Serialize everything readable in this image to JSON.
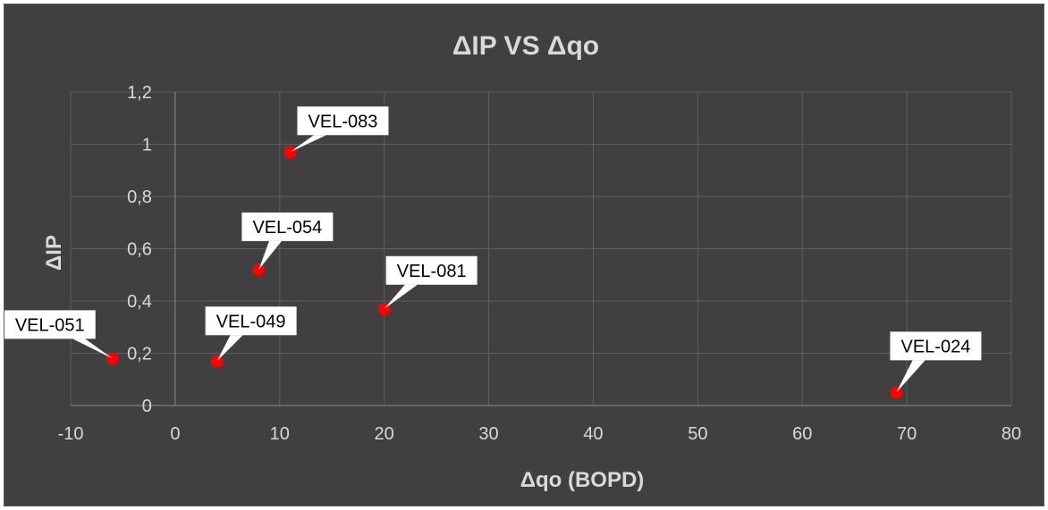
{
  "chart_data": {
    "type": "scatter",
    "title": "ΔIP VS Δqo",
    "xlabel": "Δqo (BOPD)",
    "ylabel": "ΔIP",
    "xlim": [
      -10,
      80
    ],
    "ylim": [
      0,
      1.2
    ],
    "x_ticks": [
      "-10",
      "0",
      "10",
      "20",
      "30",
      "40",
      "50",
      "60",
      "70",
      "80"
    ],
    "y_ticks": [
      "0",
      "0,2",
      "0,4",
      "0,6",
      "0,8",
      "1",
      "1,2"
    ],
    "grid": true,
    "legend": "none",
    "marker_color": "#ff0000",
    "background_color": "#404040",
    "points": [
      {
        "label": "VEL-051",
        "x": -6,
        "y": 0.18
      },
      {
        "label": "VEL-049",
        "x": 4,
        "y": 0.17
      },
      {
        "label": "VEL-054",
        "x": 8,
        "y": 0.52
      },
      {
        "label": "VEL-083",
        "x": 11,
        "y": 0.97
      },
      {
        "label": "VEL-081",
        "x": 20,
        "y": 0.37
      },
      {
        "label": "VEL-024",
        "x": 69,
        "y": 0.05
      }
    ]
  }
}
